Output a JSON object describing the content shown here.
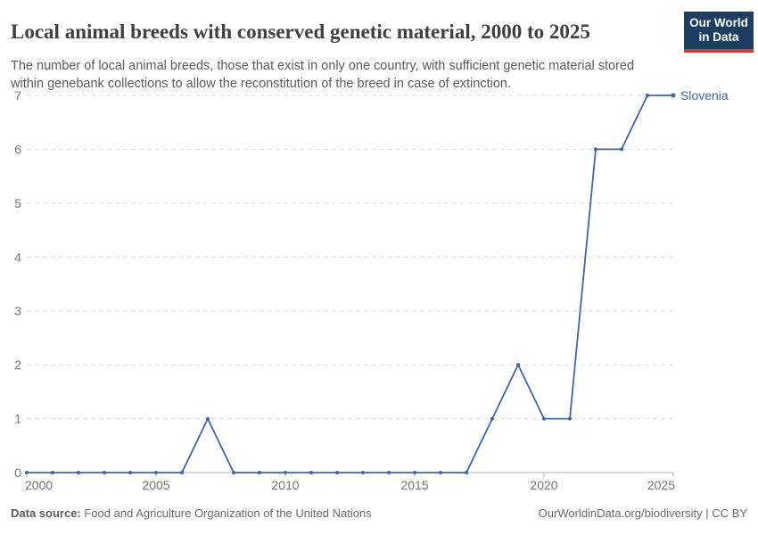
{
  "header": {
    "title": "Local animal breeds with conserved genetic material, 2000 to 2025",
    "subtitle": "The number of local animal breeds, those that exist in only one country, with sufficient genetic material stored within genebank collections to allow the reconstitution of the breed in case of extinction.",
    "logo": {
      "line1": "Our World",
      "line2": "in Data"
    }
  },
  "chart_data": {
    "type": "line",
    "title": "Local animal breeds with conserved genetic material, 2000 to 2025",
    "xlabel": "",
    "ylabel": "",
    "x": [
      2000,
      2001,
      2002,
      2003,
      2004,
      2005,
      2006,
      2007,
      2008,
      2009,
      2010,
      2011,
      2012,
      2013,
      2014,
      2015,
      2016,
      2017,
      2018,
      2019,
      2020,
      2021,
      2022,
      2023,
      2024,
      2025
    ],
    "series": [
      {
        "name": "Slovenia",
        "color": "#4264a8",
        "values": [
          0,
          0,
          0,
          0,
          0,
          0,
          0,
          1,
          0,
          0,
          0,
          0,
          0,
          0,
          0,
          0,
          0,
          0,
          1,
          2,
          1,
          1,
          6,
          6,
          7,
          7
        ]
      }
    ],
    "xlim": [
      2000,
      2025
    ],
    "ylim": [
      0,
      7
    ],
    "yticks": [
      0,
      1,
      2,
      3,
      4,
      5,
      6,
      7
    ],
    "xticks": [
      2000,
      2005,
      2010,
      2015,
      2020,
      2025
    ],
    "grid": "horizontal-dashed",
    "legend_position": "end-of-line-label",
    "end_label": "Slovenia"
  },
  "footer": {
    "source_label": "Data source:",
    "source_text": " Food and Agriculture Organization of the United Nations",
    "link_text": "OurWorldinData.org/biodiversity | CC BY"
  },
  "colors": {
    "line": "#4264a8",
    "grid": "#dcdcdc",
    "axis": "#b0b0b0",
    "tick_text": "#757575",
    "logo_bg": "#1d3d63",
    "logo_bar": "#d23a2e"
  }
}
